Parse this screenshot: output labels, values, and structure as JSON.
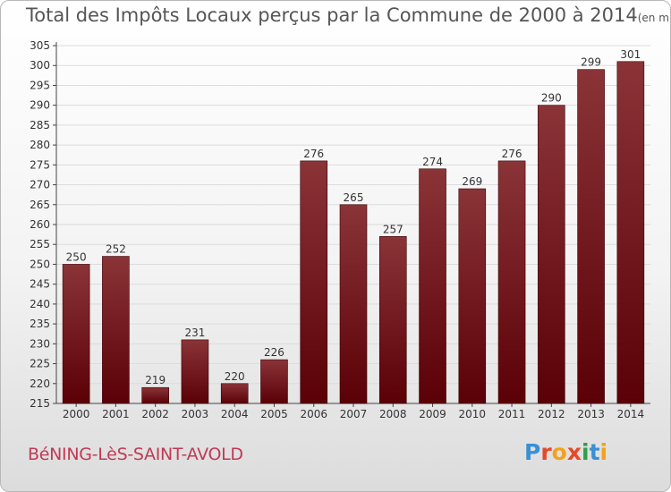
{
  "header": {
    "title": "Total des Impôts Locaux perçus par la Commune de 2000 à 2014",
    "subtitle": "(en milliers d'€)"
  },
  "footer": {
    "commune": "BéNING-LèS-SAINT-AVOLD",
    "logo_text": "Proxiti",
    "logo_letters": [
      "P",
      "r",
      "o",
      "x",
      "i",
      "t",
      "i"
    ],
    "logo_colors": [
      "#3a8fd6",
      "#e24a2a",
      "#f2a21b",
      "#e24a2a",
      "#2aa24a",
      "#3a8fd6",
      "#f2a21b"
    ]
  },
  "chart_data": {
    "type": "bar",
    "title": "Total des Impôts Locaux perçus par la Commune de 2000 à 2014",
    "subtitle": "(en milliers d'€)",
    "xlabel": "",
    "ylabel": "",
    "categories": [
      "2000",
      "2001",
      "2002",
      "2003",
      "2004",
      "2005",
      "2006",
      "2007",
      "2008",
      "2009",
      "2010",
      "2011",
      "2012",
      "2013",
      "2014"
    ],
    "values": [
      250,
      252,
      219,
      231,
      220,
      226,
      276,
      265,
      257,
      274,
      269,
      276,
      290,
      299,
      301
    ],
    "ylim": [
      215,
      305
    ],
    "yticks": [
      215,
      220,
      225,
      230,
      235,
      240,
      245,
      250,
      255,
      260,
      265,
      270,
      275,
      280,
      285,
      290,
      295,
      300,
      305
    ],
    "grid": true,
    "bar_color_top": "#8a3438",
    "bar_color_bottom": "#5a0006"
  }
}
